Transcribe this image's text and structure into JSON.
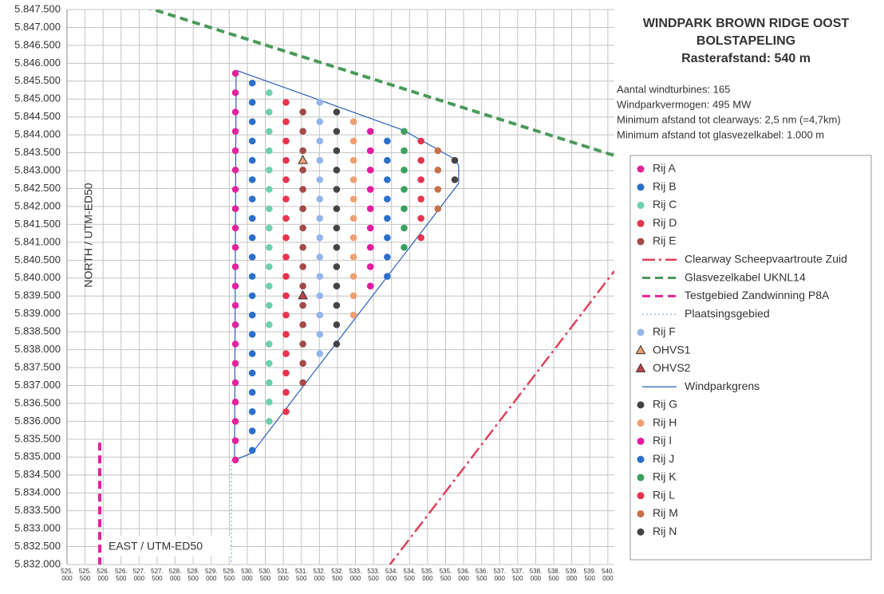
{
  "chart_data": {
    "type": "scatter",
    "title": "WINDPARK BROWN RIDGE OOST",
    "subtitle": "BOLSTAPELING",
    "subtitle2": "Rasterafstand: 540 m",
    "notes": [
      "Aantal windturbines: 165",
      "Windparkvermogen: 495 MW",
      "Minimum afstand tot clearways: 2,5 nm (=4,7km)",
      "Minimum afstand tot glasvezelkabel: 1.000 m"
    ],
    "xlabel": "EAST / UTM-ED50",
    "ylabel": "NORTH / UTM-ED50",
    "grid": true,
    "xlim": [
      525000,
      540180
    ],
    "ylim": [
      5832000,
      5847500
    ],
    "xticks": [
      {
        "value": 525000,
        "label": "525.000"
      },
      {
        "value": 525500,
        "label": "525.500"
      },
      {
        "value": 526000,
        "label": "526.000"
      },
      {
        "value": 526500,
        "label": "526.500"
      },
      {
        "value": 527000,
        "label": "527.000"
      },
      {
        "value": 527500,
        "label": "527.500"
      },
      {
        "value": 528000,
        "label": "528.000"
      },
      {
        "value": 528500,
        "label": "528.500"
      },
      {
        "value": 529000,
        "label": "529.000"
      },
      {
        "value": 529500,
        "label": "529.500"
      },
      {
        "value": 530000,
        "label": "530.000"
      },
      {
        "value": 530500,
        "label": "530.500"
      },
      {
        "value": 531000,
        "label": "531.000"
      },
      {
        "value": 531500,
        "label": "531.500"
      },
      {
        "value": 532000,
        "label": "532.000"
      },
      {
        "value": 532500,
        "label": "532.500"
      },
      {
        "value": 533000,
        "label": "533.000"
      },
      {
        "value": 533500,
        "label": "533.500"
      },
      {
        "value": 534000,
        "label": "534.000"
      },
      {
        "value": 534500,
        "label": "534.500"
      },
      {
        "value": 535000,
        "label": "535.000"
      },
      {
        "value": 535500,
        "label": "535.500"
      },
      {
        "value": 536000,
        "label": "536.000"
      },
      {
        "value": 536500,
        "label": "536.500"
      },
      {
        "value": 537000,
        "label": "537.000"
      },
      {
        "value": 537500,
        "label": "537.500"
      },
      {
        "value": 538000,
        "label": "538.000"
      },
      {
        "value": 538500,
        "label": "538.500"
      },
      {
        "value": 539000,
        "label": "539.000"
      },
      {
        "value": 539500,
        "label": "539.500"
      },
      {
        "value": 540000,
        "label": "540.000"
      }
    ],
    "yticks": [
      {
        "value": 5847500,
        "label": "5.847.500"
      },
      {
        "value": 5847000,
        "label": "5.847.000"
      },
      {
        "value": 5846500,
        "label": "5.846.500"
      },
      {
        "value": 5846000,
        "label": "5.846.000"
      },
      {
        "value": 5845500,
        "label": "5.845.500"
      },
      {
        "value": 5845000,
        "label": "5.845.000"
      },
      {
        "value": 5844500,
        "label": "5.844.500"
      },
      {
        "value": 5844000,
        "label": "5.844.000"
      },
      {
        "value": 5843500,
        "label": "5.843.500"
      },
      {
        "value": 5843000,
        "label": "5.843.000"
      },
      {
        "value": 5842500,
        "label": "5.842.500"
      },
      {
        "value": 5842000,
        "label": "5.842.000"
      },
      {
        "value": 5841500,
        "label": "5.841.500"
      },
      {
        "value": 5841000,
        "label": "5.841.000"
      },
      {
        "value": 5840500,
        "label": "5.840.500"
      },
      {
        "value": 5840000,
        "label": "5.840.000"
      },
      {
        "value": 5839500,
        "label": "5.839.500"
      },
      {
        "value": 5839000,
        "label": "5.839.000"
      },
      {
        "value": 5838500,
        "label": "5.838.500"
      },
      {
        "value": 5838000,
        "label": "5.838.000"
      },
      {
        "value": 5837500,
        "label": "5.837.500"
      },
      {
        "value": 5837000,
        "label": "5.837.000"
      },
      {
        "value": 5836500,
        "label": "5.836.500"
      },
      {
        "value": 5836000,
        "label": "5.836.000"
      },
      {
        "value": 5835500,
        "label": "5.835.500"
      },
      {
        "value": 5835000,
        "label": "5.835.000"
      },
      {
        "value": 5834500,
        "label": "5.834.500"
      },
      {
        "value": 5834000,
        "label": "5.834.000"
      },
      {
        "value": 5833500,
        "label": "5.833.500"
      },
      {
        "value": 5833000,
        "label": "5.833.000"
      },
      {
        "value": 5832500,
        "label": "5.832.500"
      },
      {
        "value": 5832000,
        "label": "5.832.000"
      }
    ],
    "series": [
      {
        "name": "Rij A",
        "marker": "circle",
        "color": "#e0249a",
        "x": [
          529670,
          529670,
          529670,
          529670,
          529670,
          529670,
          529670,
          529670,
          529670,
          529670,
          529670,
          529670,
          529670,
          529670,
          529670,
          529670,
          529670,
          529670,
          529670,
          529670,
          529670
        ],
        "y": [
          5845718,
          5845178,
          5844638,
          5844098,
          5843558,
          5843018,
          5842478,
          5841938,
          5841398,
          5840858,
          5840318,
          5839778,
          5839238,
          5838698,
          5838158,
          5837618,
          5837078,
          5836538,
          5835998,
          5835458,
          5834918
        ]
      },
      {
        "name": "Rij B",
        "marker": "circle",
        "color": "#2a6fc9",
        "x": [
          530138,
          530138,
          530138,
          530138,
          530138,
          530138,
          530138,
          530138,
          530138,
          530138,
          530138,
          530138,
          530138,
          530138,
          530138,
          530138,
          530138,
          530138,
          530138,
          530138
        ],
        "y": [
          5845448,
          5844908,
          5844368,
          5843828,
          5843288,
          5842748,
          5842208,
          5841668,
          5841128,
          5840588,
          5840048,
          5839508,
          5838968,
          5838428,
          5837888,
          5837348,
          5836808,
          5836268,
          5835728,
          5835188
        ]
      },
      {
        "name": "Rij C",
        "marker": "circle",
        "color": "#6ccfb0",
        "x": [
          530606,
          530606,
          530606,
          530606,
          530606,
          530606,
          530606,
          530606,
          530606,
          530606,
          530606,
          530606,
          530606,
          530606,
          530606,
          530606,
          530606,
          530606
        ],
        "y": [
          5845178,
          5844638,
          5844098,
          5843558,
          5843018,
          5842478,
          5841938,
          5841398,
          5840858,
          5840318,
          5839778,
          5839238,
          5838698,
          5838158,
          5837618,
          5837078,
          5836538,
          5835998
        ]
      },
      {
        "name": "Rij D",
        "marker": "circle",
        "color": "#e8334f",
        "x": [
          531074,
          531074,
          531074,
          531074,
          531074,
          531074,
          531074,
          531074,
          531074,
          531074,
          531074,
          531074,
          531074,
          531074,
          531074,
          531074,
          531074
        ],
        "y": [
          5844908,
          5844368,
          5843828,
          5843288,
          5842748,
          5842208,
          5841668,
          5841128,
          5840588,
          5840048,
          5839508,
          5838968,
          5838428,
          5837888,
          5837348,
          5836808,
          5836268
        ]
      },
      {
        "name": "Rij E",
        "marker": "circle",
        "color": "#a34a4a",
        "x": [
          531542,
          531542,
          531542,
          531542,
          531542,
          531542,
          531542,
          531542,
          531542,
          531542,
          531542,
          531542,
          531542,
          531542,
          531542
        ],
        "y": [
          5844638,
          5844098,
          5843558,
          5843018,
          5842478,
          5841938,
          5841398,
          5840858,
          5840318,
          5839778,
          5839238,
          5838698,
          5838158,
          5837618,
          5837078
        ]
      },
      {
        "name": "Clearway Scheepvaartroute Zuid",
        "marker": "line",
        "style": "dashdot",
        "color": "#e0405a",
        "x": [
          533872,
          540177
        ],
        "y": [
          5831888,
          5840194
        ]
      },
      {
        "name": "Glasvezelkabel UKNL14",
        "marker": "line",
        "style": "dashed",
        "color": "#4a9a5a",
        "x": [
          527124,
          540177
        ],
        "y": [
          5847589,
          5843424
        ]
      },
      {
        "name": "Testgebied Zandwinning P8A",
        "marker": "line",
        "style": "dashed",
        "color": "#e0249a",
        "x": [
          525907,
          525907
        ],
        "y": [
          5835405,
          5831910
        ]
      },
      {
        "name": "Plaatsingsgebied",
        "marker": "line",
        "style": "dotted",
        "color": "#6a9ad0",
        "x": [
          529558,
          529558
        ],
        "y": [
          5834894,
          5832000
        ]
      },
      {
        "name": "Rij F",
        "marker": "circle",
        "color": "#98b4ec",
        "x": [
          532010,
          532010,
          532010,
          532010,
          532010,
          532010,
          532010,
          532010,
          532010,
          532010,
          532010,
          532010,
          532010,
          532010
        ],
        "y": [
          5844908,
          5844368,
          5843828,
          5843288,
          5842748,
          5842208,
          5841668,
          5841128,
          5840588,
          5840048,
          5839508,
          5838968,
          5838428,
          5837888
        ]
      },
      {
        "name": "OHVS1",
        "marker": "triangle",
        "color": "#f0a070",
        "x": [
          531542
        ],
        "y": [
          5843288
        ]
      },
      {
        "name": "OHVS2",
        "marker": "triangle",
        "color": "#c0404a",
        "x": [
          531542
        ],
        "y": [
          5839508
        ]
      },
      {
        "name": "Windparkgrens",
        "marker": "line",
        "style": "solid",
        "color": "#2a5fb9",
        "x": [
          529690,
          534314,
          535774,
          535863,
          535863,
          530133,
          529646,
          529690
        ],
        "y": [
          5845807,
          5844137,
          5843313,
          5843135,
          5842645,
          5835116,
          5834916,
          5845807
        ]
      },
      {
        "name": "Rij G",
        "marker": "circle",
        "color": "#444444",
        "x": [
          532478,
          532478,
          532478,
          532478,
          532478,
          532478,
          532478,
          532478,
          532478,
          532478,
          532478,
          532478,
          532478
        ],
        "y": [
          5844638,
          5844098,
          5843558,
          5843018,
          5842478,
          5841938,
          5841398,
          5840858,
          5840318,
          5839778,
          5839238,
          5838698,
          5838158
        ]
      },
      {
        "name": "Rij H",
        "marker": "circle",
        "color": "#f0a070",
        "x": [
          532946,
          532946,
          532946,
          532946,
          532946,
          532946,
          532946,
          532946,
          532946,
          532946,
          532946
        ],
        "y": [
          5844368,
          5843828,
          5843288,
          5842748,
          5842208,
          5841668,
          5841128,
          5840588,
          5840048,
          5839508,
          5838968
        ]
      },
      {
        "name": "Rij I",
        "marker": "circle",
        "color": "#e31aa0",
        "x": [
          533414,
          533414,
          533414,
          533414,
          533414,
          533414,
          533414,
          533414,
          533414
        ],
        "y": [
          5844098,
          5843558,
          5843018,
          5842478,
          5841938,
          5841398,
          5840858,
          5840318,
          5839778
        ]
      },
      {
        "name": "Rij J",
        "marker": "circle",
        "color": "#2a6fc9",
        "x": [
          533882,
          533882,
          533882,
          533882,
          533882,
          533882,
          533882,
          533882
        ],
        "y": [
          5843828,
          5843288,
          5842748,
          5842208,
          5841668,
          5841128,
          5840588,
          5840048
        ]
      },
      {
        "name": "Rij K",
        "marker": "circle",
        "color": "#3aa060",
        "x": [
          534350,
          534350,
          534350,
          534350,
          534350,
          534350,
          534350
        ],
        "y": [
          5844098,
          5843558,
          5843018,
          5842478,
          5841938,
          5841398,
          5840858
        ]
      },
      {
        "name": "Rij L",
        "marker": "circle",
        "color": "#e8334f",
        "x": [
          534818,
          534818,
          534818,
          534818,
          534818,
          534818
        ],
        "y": [
          5843828,
          5843288,
          5842748,
          5842208,
          5841668,
          5841128
        ]
      },
      {
        "name": "Rij M",
        "marker": "circle",
        "color": "#c8704a",
        "x": [
          535286,
          535286,
          535286,
          535286
        ],
        "y": [
          5843558,
          5843018,
          5842478,
          5841938
        ]
      },
      {
        "name": "Rij N",
        "marker": "circle",
        "color": "#444444",
        "x": [
          535754,
          535754
        ],
        "y": [
          5843288,
          5842748
        ]
      }
    ]
  }
}
